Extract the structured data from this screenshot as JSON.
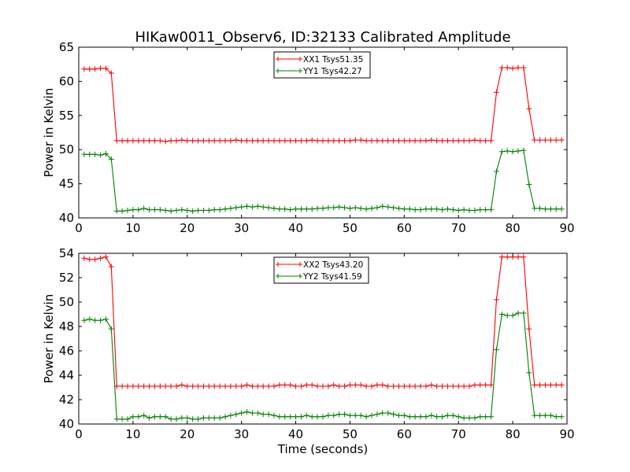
{
  "figure": {
    "title": "HIKaw0011_Observ6, ID:32133 Calibrated Amplitude"
  },
  "colors": {
    "red": "#ff0000",
    "green": "#008000",
    "axes": "#000000"
  },
  "chart_data": [
    {
      "type": "line",
      "title": "HIKaw0011_Observ6, ID:32133 Calibrated Amplitude",
      "xlabel": "",
      "ylabel": "Power in Kelvin",
      "xlim": [
        0,
        90
      ],
      "ylim": [
        40,
        65
      ],
      "xticks": [
        "0",
        "10",
        "20",
        "30",
        "40",
        "50",
        "60",
        "70",
        "80",
        "90"
      ],
      "yticks": [
        "40",
        "45",
        "50",
        "55",
        "60",
        "65"
      ],
      "grid": false,
      "legend_position": "top-center",
      "marker": "+",
      "x": [
        1,
        2,
        3,
        4,
        5,
        6,
        7,
        8,
        9,
        10,
        11,
        12,
        13,
        14,
        15,
        16,
        17,
        18,
        19,
        20,
        21,
        22,
        23,
        24,
        25,
        26,
        27,
        28,
        29,
        30,
        31,
        32,
        33,
        34,
        35,
        36,
        37,
        38,
        39,
        40,
        41,
        42,
        43,
        44,
        45,
        46,
        47,
        48,
        49,
        50,
        51,
        52,
        53,
        54,
        55,
        56,
        57,
        58,
        59,
        60,
        61,
        62,
        63,
        64,
        65,
        66,
        67,
        68,
        69,
        70,
        71,
        72,
        73,
        74,
        75,
        76,
        77,
        78,
        79,
        80,
        81,
        82,
        83,
        84,
        85,
        86,
        87,
        88,
        89
      ],
      "series": [
        {
          "name": "XX1 Tsys51.35",
          "color": "#ff0000",
          "values": [
            61.8,
            61.8,
            61.8,
            61.9,
            61.9,
            61.2,
            51.3,
            51.3,
            51.3,
            51.3,
            51.3,
            51.3,
            51.3,
            51.3,
            51.3,
            51.2,
            51.3,
            51.3,
            51.4,
            51.3,
            51.3,
            51.3,
            51.3,
            51.3,
            51.3,
            51.3,
            51.3,
            51.3,
            51.4,
            51.3,
            51.3,
            51.3,
            51.3,
            51.3,
            51.3,
            51.3,
            51.3,
            51.3,
            51.3,
            51.3,
            51.3,
            51.3,
            51.4,
            51.3,
            51.3,
            51.3,
            51.3,
            51.3,
            51.3,
            51.3,
            51.4,
            51.4,
            51.3,
            51.3,
            51.3,
            51.3,
            51.3,
            51.3,
            51.3,
            51.3,
            51.3,
            51.3,
            51.3,
            51.3,
            51.4,
            51.3,
            51.3,
            51.3,
            51.3,
            51.3,
            51.3,
            51.3,
            51.4,
            51.3,
            51.3,
            51.3,
            58.4,
            62.0,
            62.0,
            61.9,
            62.0,
            62.0,
            56.0,
            51.4,
            51.4,
            51.4,
            51.4,
            51.4,
            51.4
          ]
        },
        {
          "name": "YY1 Tsys42.27",
          "color": "#008000",
          "values": [
            49.3,
            49.3,
            49.3,
            49.2,
            49.4,
            48.6,
            41.0,
            41.0,
            41.1,
            41.2,
            41.2,
            41.4,
            41.2,
            41.2,
            41.2,
            41.1,
            41.0,
            41.1,
            41.2,
            41.1,
            41.0,
            41.1,
            41.1,
            41.1,
            41.2,
            41.2,
            41.3,
            41.4,
            41.5,
            41.6,
            41.7,
            41.6,
            41.7,
            41.6,
            41.5,
            41.4,
            41.3,
            41.3,
            41.2,
            41.3,
            41.3,
            41.3,
            41.3,
            41.4,
            41.4,
            41.5,
            41.5,
            41.6,
            41.5,
            41.4,
            41.5,
            41.4,
            41.3,
            41.4,
            41.5,
            41.7,
            41.6,
            41.5,
            41.4,
            41.3,
            41.3,
            41.2,
            41.2,
            41.3,
            41.3,
            41.3,
            41.2,
            41.3,
            41.2,
            41.1,
            41.2,
            41.1,
            41.1,
            41.2,
            41.2,
            41.2,
            46.8,
            49.7,
            49.8,
            49.7,
            49.8,
            49.9,
            44.9,
            41.4,
            41.4,
            41.3,
            41.3,
            41.3,
            41.3
          ]
        }
      ]
    },
    {
      "type": "line",
      "title": "",
      "xlabel": "Time (seconds)",
      "ylabel": "Power in Kelvin",
      "xlim": [
        0,
        90
      ],
      "ylim": [
        40,
        54
      ],
      "xticks": [
        "0",
        "10",
        "20",
        "30",
        "40",
        "50",
        "60",
        "70",
        "80",
        "90"
      ],
      "yticks": [
        "40",
        "42",
        "44",
        "46",
        "48",
        "50",
        "52",
        "54"
      ],
      "grid": false,
      "legend_position": "top-center",
      "marker": "+",
      "x": [
        1,
        2,
        3,
        4,
        5,
        6,
        7,
        8,
        9,
        10,
        11,
        12,
        13,
        14,
        15,
        16,
        17,
        18,
        19,
        20,
        21,
        22,
        23,
        24,
        25,
        26,
        27,
        28,
        29,
        30,
        31,
        32,
        33,
        34,
        35,
        36,
        37,
        38,
        39,
        40,
        41,
        42,
        43,
        44,
        45,
        46,
        47,
        48,
        49,
        50,
        51,
        52,
        53,
        54,
        55,
        56,
        57,
        58,
        59,
        60,
        61,
        62,
        63,
        64,
        65,
        66,
        67,
        68,
        69,
        70,
        71,
        72,
        73,
        74,
        75,
        76,
        77,
        78,
        79,
        80,
        81,
        82,
        83,
        84,
        85,
        86,
        87,
        88,
        89
      ],
      "series": [
        {
          "name": "XX2 Tsys43.20",
          "color": "#ff0000",
          "values": [
            53.6,
            53.5,
            53.5,
            53.6,
            53.7,
            52.9,
            43.1,
            43.1,
            43.1,
            43.1,
            43.1,
            43.1,
            43.1,
            43.1,
            43.1,
            43.1,
            43.1,
            43.1,
            43.2,
            43.1,
            43.1,
            43.1,
            43.1,
            43.1,
            43.1,
            43.1,
            43.1,
            43.1,
            43.1,
            43.1,
            43.2,
            43.1,
            43.1,
            43.1,
            43.1,
            43.1,
            43.2,
            43.2,
            43.2,
            43.1,
            43.1,
            43.2,
            43.2,
            43.1,
            43.1,
            43.1,
            43.2,
            43.1,
            43.1,
            43.2,
            43.2,
            43.2,
            43.1,
            43.1,
            43.2,
            43.2,
            43.1,
            43.1,
            43.1,
            43.1,
            43.1,
            43.1,
            43.1,
            43.1,
            43.2,
            43.1,
            43.1,
            43.1,
            43.1,
            43.1,
            43.1,
            43.1,
            43.2,
            43.2,
            43.2,
            43.2,
            50.2,
            53.7,
            53.7,
            53.7,
            53.7,
            53.7,
            47.8,
            43.2,
            43.2,
            43.2,
            43.2,
            43.2,
            43.2
          ]
        },
        {
          "name": "YY2 Tsys41.59",
          "color": "#008000",
          "values": [
            48.5,
            48.6,
            48.5,
            48.5,
            48.6,
            47.8,
            40.4,
            40.4,
            40.4,
            40.6,
            40.6,
            40.7,
            40.5,
            40.6,
            40.6,
            40.6,
            40.4,
            40.4,
            40.5,
            40.5,
            40.4,
            40.4,
            40.5,
            40.5,
            40.5,
            40.5,
            40.6,
            40.7,
            40.8,
            40.9,
            41.0,
            40.9,
            40.9,
            40.8,
            40.8,
            40.7,
            40.6,
            40.6,
            40.6,
            40.6,
            40.6,
            40.7,
            40.6,
            40.6,
            40.6,
            40.7,
            40.7,
            40.8,
            40.8,
            40.7,
            40.7,
            40.7,
            40.6,
            40.7,
            40.8,
            40.9,
            40.9,
            40.8,
            40.7,
            40.7,
            40.6,
            40.6,
            40.6,
            40.6,
            40.7,
            40.6,
            40.6,
            40.7,
            40.7,
            40.6,
            40.5,
            40.5,
            40.5,
            40.6,
            40.6,
            40.6,
            46.1,
            49.0,
            48.9,
            48.9,
            49.1,
            49.1,
            44.2,
            40.7,
            40.7,
            40.7,
            40.7,
            40.6,
            40.6
          ]
        }
      ]
    }
  ]
}
